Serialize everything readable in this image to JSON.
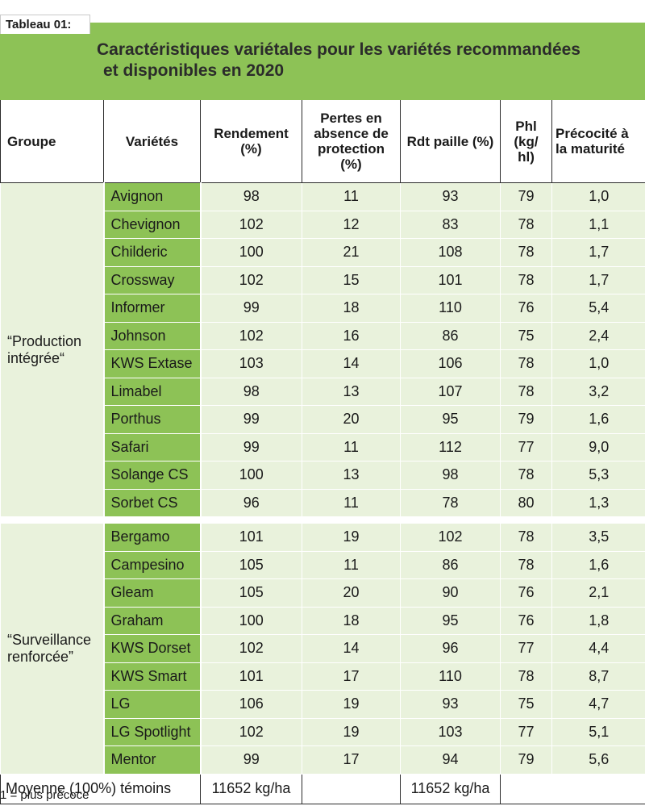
{
  "caption": "Tableau 01:",
  "title_line1": "Caractéristiques variétales pour les variétés recommandées",
  "title_line2": "et disponibles en 2020",
  "headers": {
    "groupe": "Groupe",
    "varietes": "Variétés",
    "rendement": "Rendement (%)",
    "pertes": "Pertes en absence de protection (%)",
    "rdt_paille": "Rdt paille (%)",
    "phl": "Phl (kg/ hl)",
    "precocite": "Précocité à la maturité"
  },
  "groups": [
    {
      "label": "“Production intégrée“",
      "rows": [
        {
          "variete": "Avignon",
          "rendement": "98",
          "pertes": "11",
          "rdt_paille": "93",
          "phl": "79",
          "precocite": "1,0"
        },
        {
          "variete": "Chevignon",
          "rendement": "102",
          "pertes": "12",
          "rdt_paille": "83",
          "phl": "78",
          "precocite": "1,1"
        },
        {
          "variete": "Childeric",
          "rendement": "100",
          "pertes": "21",
          "rdt_paille": "108",
          "phl": "78",
          "precocite": "1,7"
        },
        {
          "variete": "Crossway",
          "rendement": "102",
          "pertes": "15",
          "rdt_paille": "101",
          "phl": "78",
          "precocite": "1,7"
        },
        {
          "variete": "Informer",
          "rendement": "99",
          "pertes": "18",
          "rdt_paille": "110",
          "phl": "76",
          "precocite": "5,4"
        },
        {
          "variete": "Johnson",
          "rendement": "102",
          "pertes": "16",
          "rdt_paille": "86",
          "phl": "75",
          "precocite": "2,4"
        },
        {
          "variete": "KWS Extase",
          "rendement": "103",
          "pertes": "14",
          "rdt_paille": "106",
          "phl": "78",
          "precocite": "1,0"
        },
        {
          "variete": "Limabel",
          "rendement": "98",
          "pertes": "13",
          "rdt_paille": "107",
          "phl": "78",
          "precocite": "3,2"
        },
        {
          "variete": "Porthus",
          "rendement": "99",
          "pertes": "20",
          "rdt_paille": "95",
          "phl": "79",
          "precocite": "1,6"
        },
        {
          "variete": "Safari",
          "rendement": "99",
          "pertes": "11",
          "rdt_paille": "112",
          "phl": "77",
          "precocite": "9,0"
        },
        {
          "variete": "Solange CS",
          "rendement": "100",
          "pertes": "13",
          "rdt_paille": "98",
          "phl": "78",
          "precocite": "5,3"
        },
        {
          "variete": "Sorbet CS",
          "rendement": "96",
          "pertes": "11",
          "rdt_paille": "78",
          "phl": "80",
          "precocite": "1,3"
        }
      ]
    },
    {
      "label": "“Surveillance renforcée”",
      "rows": [
        {
          "variete": "Bergamo",
          "rendement": "101",
          "pertes": "19",
          "rdt_paille": "102",
          "phl": "78",
          "precocite": "3,5"
        },
        {
          "variete": "Campesino",
          "rendement": "105",
          "pertes": "11",
          "rdt_paille": "86",
          "phl": "78",
          "precocite": "1,6"
        },
        {
          "variete": "Gleam",
          "rendement": "105",
          "pertes": "20",
          "rdt_paille": "90",
          "phl": "76",
          "precocite": "2,1"
        },
        {
          "variete": "Graham",
          "rendement": "100",
          "pertes": "18",
          "rdt_paille": "95",
          "phl": "76",
          "precocite": "1,8"
        },
        {
          "variete": "KWS Dorset",
          "rendement": "102",
          "pertes": "14",
          "rdt_paille": "96",
          "phl": "77",
          "precocite": "4,4"
        },
        {
          "variete": "KWS Smart",
          "rendement": "101",
          "pertes": "17",
          "rdt_paille": "110",
          "phl": "78",
          "precocite": "8,7"
        },
        {
          "variete": "LG",
          "rendement": "106",
          "pertes": "19",
          "rdt_paille": "93",
          "phl": "75",
          "precocite": "4,7"
        },
        {
          "variete": "LG Spotlight",
          "rendement": "102",
          "pertes": "19",
          "rdt_paille": "103",
          "phl": "77",
          "precocite": "5,1"
        },
        {
          "variete": "Mentor",
          "rendement": "99",
          "pertes": "17",
          "rdt_paille": "94",
          "phl": "79",
          "precocite": "5,6"
        }
      ]
    }
  ],
  "footer": {
    "label": "Moyenne (100%) témoins",
    "rendement": "11652 kg/ha",
    "rdt_paille": "11652 kg/ha"
  },
  "footnote": "1 = plus précoce",
  "colors": {
    "accent_green": "#8dc256",
    "light_green": "#e9f2dc"
  }
}
